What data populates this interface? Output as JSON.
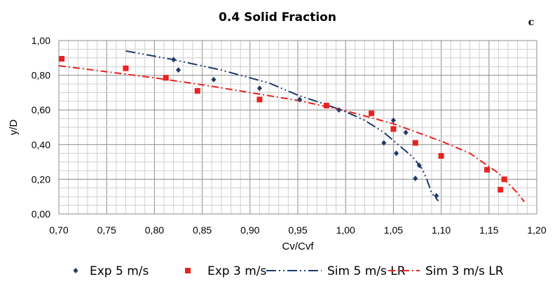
{
  "chart_data": {
    "type": "scatter",
    "title": "0.4 Solid Fraction",
    "panel_label": "c",
    "xlabel": "Cv/Cvf",
    "ylabel": "y/D",
    "xlim": [
      0.7,
      1.2
    ],
    "ylim": [
      0.0,
      1.0
    ],
    "x_ticks": [
      "0,70",
      "0,75",
      "0,80",
      "0,85",
      "0,90",
      "0,95",
      "1,00",
      "1,05",
      "1,10",
      "1,15",
      "1,20"
    ],
    "y_ticks": [
      "0,00",
      "0,20",
      "0,40",
      "0,60",
      "0,80",
      "1,00"
    ],
    "grid": true,
    "legend_position": "bottom",
    "series": [
      {
        "name": "Exp 5 m/s",
        "kind": "marker",
        "marker": "diamond",
        "color": "#1f3a6b",
        "points": [
          [
            0.82,
            0.89
          ],
          [
            0.825,
            0.83
          ],
          [
            0.862,
            0.775
          ],
          [
            0.91,
            0.725
          ],
          [
            0.952,
            0.66
          ],
          [
            0.993,
            0.6
          ],
          [
            1.04,
            0.41
          ],
          [
            1.05,
            0.54
          ],
          [
            1.053,
            0.35
          ],
          [
            1.063,
            0.47
          ],
          [
            1.073,
            0.205
          ],
          [
            1.077,
            0.28
          ],
          [
            1.095,
            0.105
          ]
        ]
      },
      {
        "name": "Exp 3 m/s",
        "kind": "marker",
        "marker": "square",
        "color": "#e8231f",
        "points": [
          [
            0.703,
            0.895
          ],
          [
            0.77,
            0.84
          ],
          [
            0.812,
            0.785
          ],
          [
            0.845,
            0.71
          ],
          [
            0.91,
            0.66
          ],
          [
            0.98,
            0.625
          ],
          [
            1.027,
            0.58
          ],
          [
            1.05,
            0.49
          ],
          [
            1.073,
            0.41
          ],
          [
            1.1,
            0.335
          ],
          [
            1.148,
            0.255
          ],
          [
            1.162,
            0.14
          ],
          [
            1.166,
            0.2
          ]
        ]
      },
      {
        "name": "Sim 5 m/s LR",
        "kind": "line",
        "dash": "dash-dot-dot",
        "color": "#1f3a6b",
        "points": [
          [
            0.77,
            0.94
          ],
          [
            0.82,
            0.89
          ],
          [
            0.87,
            0.83
          ],
          [
            0.92,
            0.755
          ],
          [
            0.95,
            0.685
          ],
          [
            0.98,
            0.63
          ],
          [
            1.0,
            0.59
          ],
          [
            1.02,
            0.54
          ],
          [
            1.04,
            0.47
          ],
          [
            1.055,
            0.4
          ],
          [
            1.07,
            0.33
          ],
          [
            1.08,
            0.26
          ],
          [
            1.085,
            0.2
          ],
          [
            1.09,
            0.12
          ],
          [
            1.097,
            0.075
          ]
        ]
      },
      {
        "name": "Sim 3 m/s LR",
        "kind": "line",
        "dash": "dash-dot",
        "color": "#e8231f",
        "points": [
          [
            0.7,
            0.855
          ],
          [
            0.75,
            0.82
          ],
          [
            0.8,
            0.785
          ],
          [
            0.85,
            0.745
          ],
          [
            0.9,
            0.7
          ],
          [
            0.95,
            0.655
          ],
          [
            1.0,
            0.595
          ],
          [
            1.05,
            0.52
          ],
          [
            1.1,
            0.42
          ],
          [
            1.13,
            0.35
          ],
          [
            1.16,
            0.235
          ],
          [
            1.18,
            0.12
          ],
          [
            1.187,
            0.07
          ]
        ]
      }
    ]
  }
}
